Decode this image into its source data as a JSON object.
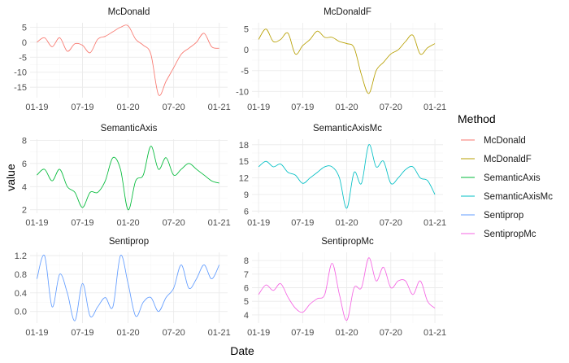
{
  "chart_data": {
    "type": "line",
    "facet_layout": "2 columns x 3 rows, free y scales",
    "xlabel": "Date",
    "ylabel": "value",
    "x_ticks": [
      "01-19",
      "07-19",
      "01-20",
      "07-20",
      "01-21"
    ],
    "grid": true,
    "legend": {
      "title": "Method",
      "position": "right",
      "entries": [
        {
          "name": "McDonald",
          "color": "#F8766D"
        },
        {
          "name": "McDonaldF",
          "color": "#B79F00"
        },
        {
          "name": "SemanticAxis",
          "color": "#00BA38"
        },
        {
          "name": "SemanticAxisMc",
          "color": "#00BFC4"
        },
        {
          "name": "Sentiprop",
          "color": "#619CFF"
        },
        {
          "name": "SentipropMc",
          "color": "#F564E3"
        }
      ]
    },
    "facets": [
      {
        "title": "McDonald",
        "color": "#F8766D",
        "ylim": [
          -18.5,
          6.5
        ],
        "y_ticks": [
          5,
          0,
          -5,
          -10,
          -15
        ],
        "y_tick_labels": [
          "5",
          "0",
          "-5",
          "-10",
          "-15"
        ],
        "x": [
          "2019-01",
          "2019-02",
          "2019-03",
          "2019-04",
          "2019-05",
          "2019-06",
          "2019-07",
          "2019-08",
          "2019-09",
          "2019-10",
          "2019-11",
          "2019-12",
          "2020-01",
          "2020-02",
          "2020-03",
          "2020-04",
          "2020-05",
          "2020-06",
          "2020-07",
          "2020-08",
          "2020-09",
          "2020-10",
          "2020-11",
          "2020-12",
          "2021-01"
        ],
        "values": [
          0,
          1.5,
          -1.5,
          1.5,
          -3,
          -0.5,
          -1,
          -3.5,
          1,
          2,
          3.5,
          5,
          5.5,
          1,
          -1,
          -4,
          -17.5,
          -13,
          -8.5,
          -4,
          -2,
          0,
          3,
          -1.5,
          -2
        ]
      },
      {
        "title": "McDonaldF",
        "color": "#B79F00",
        "ylim": [
          -11.5,
          6.5
        ],
        "y_ticks": [
          5,
          0,
          -5,
          -10
        ],
        "y_tick_labels": [
          "5",
          "0",
          "-5",
          "-10"
        ],
        "x": [
          "2019-01",
          "2019-02",
          "2019-03",
          "2019-04",
          "2019-05",
          "2019-06",
          "2019-07",
          "2019-08",
          "2019-09",
          "2019-10",
          "2019-11",
          "2019-12",
          "2020-01",
          "2020-02",
          "2020-03",
          "2020-04",
          "2020-05",
          "2020-06",
          "2020-07",
          "2020-08",
          "2020-09",
          "2020-10",
          "2020-11",
          "2020-12",
          "2021-01"
        ],
        "values": [
          2.5,
          5,
          2,
          2.5,
          4,
          -1,
          1,
          2.5,
          4.5,
          3,
          3,
          2,
          1.5,
          0.5,
          -6,
          -10.5,
          -5,
          -3,
          -1,
          0,
          2,
          3.5,
          -1,
          0.5,
          1.5
        ]
      },
      {
        "title": "SemanticAxis",
        "color": "#00BA38",
        "ylim": [
          1.7,
          8.1
        ],
        "y_ticks": [
          8,
          6,
          4,
          2
        ],
        "y_tick_labels": [
          "8",
          "6",
          "4",
          "2"
        ],
        "x": [
          "2019-01",
          "2019-02",
          "2019-03",
          "2019-04",
          "2019-05",
          "2019-06",
          "2019-07",
          "2019-08",
          "2019-09",
          "2019-10",
          "2019-11",
          "2019-12",
          "2020-01",
          "2020-02",
          "2020-03",
          "2020-04",
          "2020-05",
          "2020-06",
          "2020-07",
          "2020-08",
          "2020-09",
          "2020-10",
          "2020-11",
          "2020-12",
          "2021-01"
        ],
        "values": [
          5,
          5.5,
          4.5,
          5.5,
          4,
          3.5,
          2.2,
          3.5,
          3.5,
          4.5,
          6.5,
          5.5,
          2,
          4.5,
          5,
          7.5,
          5.5,
          6.5,
          5,
          5.5,
          6,
          5.5,
          5,
          4.5,
          4.3
        ]
      },
      {
        "title": "SemanticAxisMc",
        "color": "#00BFC4",
        "ylim": [
          5.6,
          19.0
        ],
        "y_ticks": [
          18,
          15,
          12,
          9,
          6
        ],
        "y_tick_labels": [
          "18",
          "15",
          "12",
          "9",
          "6"
        ],
        "x": [
          "2019-01",
          "2019-02",
          "2019-03",
          "2019-04",
          "2019-05",
          "2019-06",
          "2019-07",
          "2019-08",
          "2019-09",
          "2019-10",
          "2019-11",
          "2019-12",
          "2020-01",
          "2020-02",
          "2020-03",
          "2020-04",
          "2020-05",
          "2020-06",
          "2020-07",
          "2020-08",
          "2020-09",
          "2020-10",
          "2020-11",
          "2020-12",
          "2021-01"
        ],
        "values": [
          14,
          15,
          14,
          14.5,
          13,
          12.5,
          11,
          12,
          13,
          14,
          14,
          12,
          6.5,
          13,
          11,
          18,
          14,
          15,
          11,
          12,
          13.5,
          14,
          12,
          11.5,
          9
        ]
      },
      {
        "title": "Sentiprop",
        "color": "#619CFF",
        "ylim": [
          -0.25,
          1.27
        ],
        "y_ticks": [
          1.2,
          0.8,
          0.4,
          0.0
        ],
        "y_tick_labels": [
          "1.2",
          "0.8",
          "0.4",
          "0.0"
        ],
        "x": [
          "2019-01",
          "2019-02",
          "2019-03",
          "2019-04",
          "2019-05",
          "2019-06",
          "2019-07",
          "2019-08",
          "2019-09",
          "2019-10",
          "2019-11",
          "2019-12",
          "2020-01",
          "2020-02",
          "2020-03",
          "2020-04",
          "2020-05",
          "2020-06",
          "2020-07",
          "2020-08",
          "2020-09",
          "2020-10",
          "2020-11",
          "2020-12",
          "2021-01"
        ],
        "values": [
          0.7,
          1.2,
          0.1,
          0.8,
          0.4,
          -0.2,
          0.6,
          -0.1,
          0.1,
          0.3,
          0.1,
          1.2,
          0.6,
          -0.1,
          0.2,
          0.3,
          0.0,
          0.3,
          0.5,
          1.0,
          0.5,
          0.7,
          1.0,
          0.7,
          1.0
        ]
      },
      {
        "title": "SentipropMc",
        "color": "#F564E3",
        "ylim": [
          3.4,
          8.6
        ],
        "y_ticks": [
          8,
          7,
          6,
          5,
          4
        ],
        "y_tick_labels": [
          "8",
          "7",
          "6",
          "5",
          "4"
        ],
        "x": [
          "2019-01",
          "2019-02",
          "2019-03",
          "2019-04",
          "2019-05",
          "2019-06",
          "2019-07",
          "2019-08",
          "2019-09",
          "2019-10",
          "2019-11",
          "2019-12",
          "2020-01",
          "2020-02",
          "2020-03",
          "2020-04",
          "2020-05",
          "2020-06",
          "2020-07",
          "2020-08",
          "2020-09",
          "2020-10",
          "2020-11",
          "2020-12",
          "2021-01"
        ],
        "values": [
          5.5,
          6.2,
          5.8,
          6.3,
          5.3,
          4.5,
          4.2,
          4.8,
          5.2,
          5.5,
          7.8,
          5.5,
          3.6,
          6.0,
          6.0,
          8.2,
          6.5,
          7.5,
          6.0,
          6.5,
          6.5,
          5.5,
          6.5,
          5.0,
          4.5
        ]
      }
    ]
  }
}
